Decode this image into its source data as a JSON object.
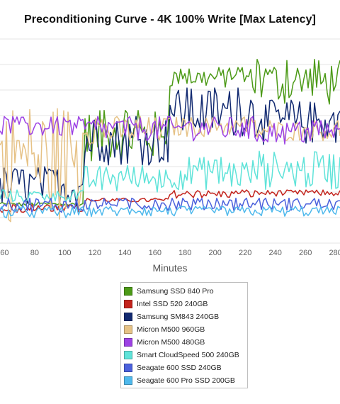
{
  "chart_data": {
    "type": "line",
    "title": "Preconditioning Curve - 4K 100% Write [Max Latency]",
    "xlabel": "Minutes",
    "ylabel": "",
    "x_ticks": [
      60,
      80,
      100,
      120,
      140,
      160,
      180,
      200,
      220,
      240,
      260,
      280
    ],
    "x_visible_range": [
      57,
      283
    ],
    "grid": true,
    "legend_position": "bottom",
    "series": [
      {
        "name": "Samsung SSD 840 Pro",
        "color": "#4c9a17",
        "segments": [
          [
            0.18,
            0.2
          ],
          [
            0.4,
            0.65
          ],
          [
            0.76,
            0.86
          ],
          [
            0.67,
            0.9
          ]
        ]
      },
      {
        "name": "Intel SSD 520 240GB",
        "color": "#c3231c",
        "segments": [
          [
            0.19,
            0.15
          ],
          [
            0.2,
            0.22
          ],
          [
            0.22,
            0.26
          ],
          [
            0.23,
            0.26
          ]
        ]
      },
      {
        "name": "Samsung SM843 240GB",
        "color": "#122a71",
        "segments": [
          [
            0.18,
            0.38
          ],
          [
            0.38,
            0.62
          ],
          [
            0.52,
            0.76
          ],
          [
            0.48,
            0.7
          ]
        ]
      },
      {
        "name": "Micron M500 960GB",
        "color": "#e6c286",
        "segments": [
          [
            0.1,
            0.7
          ],
          [
            0.48,
            0.62
          ],
          [
            0.52,
            0.62
          ],
          [
            0.5,
            0.6
          ]
        ]
      },
      {
        "name": "Micron M500 480GB",
        "color": "#9d42e4",
        "segments": [
          [
            0.52,
            0.62
          ],
          [
            0.5,
            0.62
          ],
          [
            0.5,
            0.62
          ],
          [
            0.48,
            0.6
          ]
        ]
      },
      {
        "name": "Smart CloudSpeed 500 240GB",
        "color": "#5fe3d9",
        "segments": [
          [
            0.2,
            0.26
          ],
          [
            0.24,
            0.38
          ],
          [
            0.26,
            0.42
          ],
          [
            0.26,
            0.45
          ]
        ]
      },
      {
        "name": "Seagate 600 SSD 240GB",
        "color": "#4b61dc",
        "segments": [
          [
            0.15,
            0.22
          ],
          [
            0.16,
            0.22
          ],
          [
            0.16,
            0.22
          ],
          [
            0.16,
            0.22
          ]
        ]
      },
      {
        "name": "Seagate 600 Pro SSD 200GB",
        "color": "#4fb9ec",
        "segments": [
          [
            0.12,
            0.18
          ],
          [
            0.13,
            0.18
          ],
          [
            0.13,
            0.18
          ],
          [
            0.13,
            0.18
          ]
        ]
      }
    ]
  }
}
